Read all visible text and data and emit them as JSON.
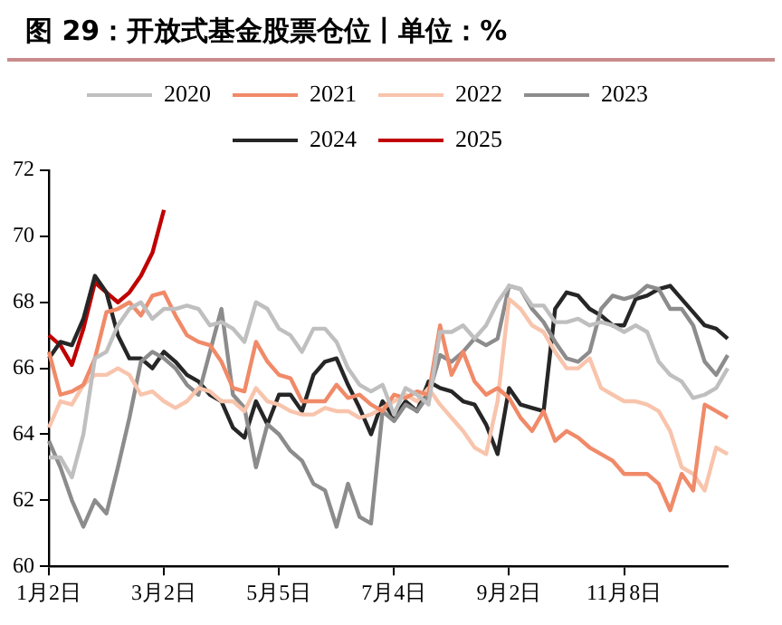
{
  "chart_data": {
    "type": "line",
    "title": "图 29：开放式基金股票仓位丨单位：%",
    "categories": [
      "1月2日",
      null,
      null,
      null,
      null,
      null,
      null,
      null,
      null,
      null,
      "3月2日",
      null,
      null,
      null,
      null,
      null,
      null,
      null,
      null,
      null,
      "5月5日",
      null,
      null,
      null,
      null,
      null,
      null,
      null,
      null,
      null,
      "7月4日",
      null,
      null,
      null,
      null,
      null,
      null,
      null,
      null,
      null,
      "9月2日",
      null,
      null,
      null,
      null,
      null,
      null,
      null,
      null,
      null,
      "11月8日",
      null,
      null,
      null,
      null,
      null,
      null,
      null,
      null,
      null
    ],
    "series": [
      {
        "name": "2020",
        "color": "#bfbfbf",
        "values": [
          63.3,
          63.3,
          62.7,
          64.0,
          66.3,
          66.5,
          67.3,
          67.8,
          68.0,
          67.5,
          67.8,
          67.8,
          67.9,
          67.8,
          67.3,
          67.4,
          67.2,
          66.8,
          68.0,
          67.8,
          67.2,
          67.0,
          66.5,
          67.2,
          67.2,
          66.8,
          66.0,
          65.5,
          65.3,
          65.5,
          64.6,
          65.4,
          65.2,
          64.9,
          67.1,
          67.1,
          67.3,
          66.9,
          67.3,
          68.0,
          68.5,
          68.4,
          67.9,
          67.9,
          67.4,
          67.4,
          67.5,
          67.3,
          67.4,
          67.3,
          67.1,
          67.3,
          67.1,
          66.2,
          65.8,
          65.6,
          65.1,
          65.2,
          65.4,
          66.0
        ]
      },
      {
        "name": "2021",
        "color": "#f08a68",
        "values": [
          66.5,
          65.2,
          65.3,
          65.5,
          66.3,
          67.7,
          67.8,
          68.0,
          67.6,
          68.2,
          68.3,
          67.6,
          67.0,
          66.8,
          66.7,
          66.2,
          65.4,
          65.3,
          66.8,
          66.2,
          65.8,
          65.7,
          65.0,
          65.0,
          65.0,
          65.5,
          65.1,
          65.2,
          64.9,
          64.7,
          65.2,
          65.1,
          65.3,
          65.2,
          67.3,
          65.8,
          66.5,
          65.6,
          65.2,
          65.4,
          65.1,
          64.5,
          64.1,
          64.7,
          63.8,
          64.1,
          63.9,
          63.6,
          63.4,
          63.2,
          62.8,
          62.8,
          62.8,
          62.5,
          61.7,
          62.8,
          62.3,
          64.9,
          64.7,
          64.5
        ]
      },
      {
        "name": "2022",
        "color": "#f8c4ac",
        "values": [
          64.2,
          65.0,
          64.9,
          65.5,
          65.8,
          65.8,
          66.0,
          65.8,
          65.2,
          65.3,
          65.0,
          64.8,
          65.0,
          65.4,
          65.3,
          65.0,
          65.0,
          64.7,
          65.4,
          65.0,
          64.9,
          64.7,
          64.6,
          64.6,
          64.8,
          64.7,
          64.7,
          64.5,
          64.6,
          64.8,
          65.0,
          65.2,
          65.0,
          65.4,
          64.9,
          64.5,
          64.1,
          63.6,
          63.4,
          65.0,
          68.1,
          67.8,
          67.3,
          67.1,
          66.5,
          66.0,
          66.0,
          66.3,
          65.4,
          65.2,
          65.0,
          65.0,
          64.9,
          64.7,
          64.1,
          63.0,
          62.8,
          62.3,
          63.6,
          63.4
        ]
      },
      {
        "name": "2023",
        "color": "#8c8c8c",
        "values": [
          63.8,
          63.0,
          62.0,
          61.2,
          62.0,
          61.6,
          63.0,
          64.5,
          66.2,
          66.5,
          66.3,
          66.0,
          65.5,
          65.2,
          66.5,
          67.8,
          65.2,
          64.8,
          63.0,
          64.3,
          64.0,
          63.5,
          63.2,
          62.5,
          62.3,
          61.2,
          62.5,
          61.5,
          61.3,
          64.7,
          64.4,
          64.9,
          64.7,
          65.2,
          66.4,
          66.2,
          66.5,
          66.9,
          66.7,
          66.9,
          68.5,
          68.4,
          67.8,
          67.4,
          66.8,
          66.3,
          66.2,
          66.5,
          67.8,
          68.2,
          68.1,
          68.2,
          68.5,
          68.4,
          67.8,
          67.8,
          67.3,
          66.2,
          65.8,
          66.4
        ]
      },
      {
        "name": "2024",
        "color": "#262626",
        "values": [
          66.3,
          66.8,
          66.7,
          67.5,
          68.8,
          68.3,
          67.0,
          66.3,
          66.3,
          66.0,
          66.5,
          66.2,
          65.8,
          65.6,
          65.2,
          65.0,
          64.2,
          63.9,
          65.0,
          64.3,
          65.2,
          65.2,
          64.7,
          65.8,
          66.2,
          66.3,
          65.5,
          64.8,
          64.0,
          65.0,
          64.5,
          65.0,
          64.7,
          65.6,
          65.4,
          65.3,
          65.0,
          64.9,
          64.3,
          63.4,
          65.4,
          64.9,
          64.8,
          64.7,
          67.8,
          68.3,
          68.2,
          67.8,
          67.6,
          67.3,
          67.3,
          68.1,
          68.2,
          68.4,
          68.5,
          68.1,
          67.7,
          67.3,
          67.2,
          66.9
        ]
      },
      {
        "name": "2025",
        "color": "#c00000",
        "values": [
          67.0,
          66.7,
          66.1,
          67.2,
          68.6,
          68.3,
          68.0,
          68.3,
          68.8,
          69.5,
          70.8,
          null,
          null,
          null,
          null,
          null,
          null,
          null,
          null,
          null,
          null,
          null,
          null,
          null,
          null,
          null,
          null,
          null,
          null,
          null,
          null,
          null,
          null,
          null,
          null,
          null,
          null,
          null,
          null,
          null,
          null,
          null,
          null,
          null,
          null,
          null,
          null,
          null,
          null,
          null,
          null,
          null,
          null,
          null,
          null,
          null,
          null,
          null,
          null,
          null
        ]
      }
    ],
    "ylim": [
      60,
      72
    ],
    "yticks": [
      60,
      62,
      64,
      66,
      68,
      70,
      72
    ],
    "grid": false,
    "legend": "top",
    "marker": "none",
    "line_style": "solid"
  }
}
